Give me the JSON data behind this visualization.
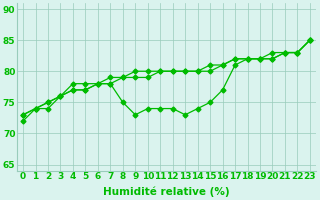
{
  "x": [
    0,
    1,
    2,
    3,
    4,
    5,
    6,
    7,
    8,
    9,
    10,
    11,
    12,
    13,
    14,
    15,
    16,
    17,
    18,
    19,
    20,
    21,
    22,
    23
  ],
  "line1": [
    72,
    74,
    74,
    76,
    78,
    78,
    78,
    78,
    75,
    73,
    74,
    74,
    74,
    73,
    74,
    75,
    77,
    81,
    82,
    82,
    82,
    83,
    83,
    85
  ],
  "line2": [
    73,
    74,
    75,
    76,
    77,
    77,
    78,
    78,
    79,
    79,
    79,
    80,
    80,
    80,
    80,
    80,
    81,
    82,
    82,
    82,
    82,
    83,
    83,
    85
  ],
  "line3": [
    73,
    74,
    75,
    76,
    77,
    77,
    78,
    79,
    79,
    80,
    80,
    80,
    80,
    80,
    80,
    81,
    81,
    82,
    82,
    82,
    83,
    83,
    83,
    85
  ],
  "line_color": "#00bb00",
  "bg_color": "#daf3ee",
  "grid_color": "#99ccbb",
  "xlabel": "Humidité relative (%)",
  "ylabel_ticks": [
    65,
    70,
    75,
    80,
    85,
    90
  ],
  "xlim": [
    -0.5,
    23.5
  ],
  "ylim": [
    64,
    91
  ],
  "tick_fontsize": 6.5,
  "xlabel_fontsize": 7.5,
  "marker": "D",
  "markersize": 2.5,
  "linewidth": 0.9
}
